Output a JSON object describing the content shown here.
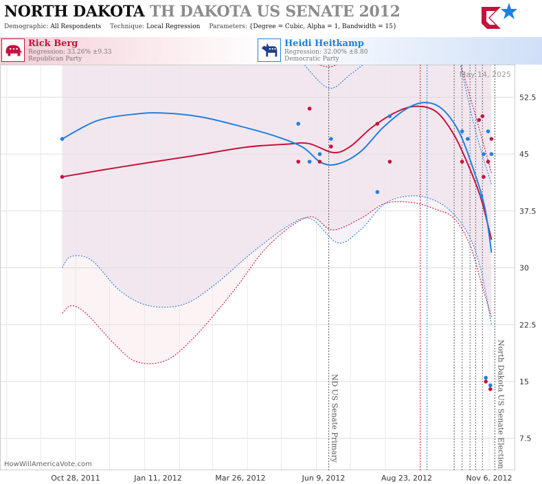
{
  "header": {
    "state": "NORTH DAKOTA",
    "race": "TH DAKOTA US SENATE 2012",
    "params": [
      {
        "key": "Demographic:",
        "value": "All Respondents"
      },
      {
        "key": "Technique:",
        "value": "Local Regression"
      },
      {
        "key": "Parameters:",
        "value": "{Degree = Cubic, Alpha = 1, Bandwidth = 15}"
      }
    ]
  },
  "candidates": [
    {
      "name": "Rick Berg",
      "regression": "Regression: 33.26% ±9.33",
      "party": "Republican Party",
      "color": "#c8103c",
      "icon": "elephant-icon"
    },
    {
      "name": "Heidi Heitkamp",
      "regression": "Regression: 32.00% ±8.80",
      "party": "Democratic Party",
      "color": "#1f7fe0",
      "icon": "donkey-icon"
    }
  ],
  "chart_data": {
    "type": "scatter",
    "date_stamp": "May 14, 2025",
    "source": "HowWillAmericaVote.com",
    "x_ticks": [
      "Oct 28, 2011",
      "Jan 11, 2012",
      "Mar 26, 2012",
      "Jun 9, 2012",
      "Aug 23, 2012",
      "Nov 6, 2012"
    ],
    "y_ticks": [
      7.5,
      15,
      22.5,
      30,
      37.5,
      45,
      52.5
    ],
    "xlim": [
      "2011-08-26",
      "2012-11-24"
    ],
    "ylim": [
      3.3,
      56.8
    ],
    "events": [
      {
        "label": "ND US Senate Primary",
        "date": "2012-06-12"
      },
      {
        "label": "North Dakota US Senate Election",
        "date": "2012-11-06"
      }
    ],
    "marker_lines": [
      {
        "date": "2012-09-01",
        "color": "#c8103c"
      },
      {
        "date": "2012-09-07",
        "color": "#1f7fe0"
      },
      {
        "date": "2012-10-01",
        "color": "#666666"
      },
      {
        "date": "2012-10-08",
        "color": "#666666"
      },
      {
        "date": "2012-10-15",
        "color": "#666666"
      },
      {
        "date": "2012-10-20",
        "color": "#666666"
      },
      {
        "date": "2012-10-26",
        "color": "#666666"
      }
    ],
    "series": [
      {
        "name": "Rick Berg",
        "color": "#c8103c",
        "points": [
          {
            "x": "2011-10-20",
            "y": 42
          },
          {
            "x": "2012-05-16",
            "y": 44
          },
          {
            "x": "2012-05-26",
            "y": 51
          },
          {
            "x": "2012-06-04",
            "y": 44
          },
          {
            "x": "2012-06-14",
            "y": 46
          },
          {
            "x": "2012-07-25",
            "y": 49
          },
          {
            "x": "2012-08-05",
            "y": 44
          },
          {
            "x": "2012-10-08",
            "y": 44
          },
          {
            "x": "2012-10-23",
            "y": 49.5
          },
          {
            "x": "2012-10-26",
            "y": 50
          },
          {
            "x": "2012-10-27",
            "y": 42
          },
          {
            "x": "2012-10-31",
            "y": 44
          },
          {
            "x": "2012-11-03",
            "y": 47
          },
          {
            "x": "2012-10-29",
            "y": 15
          },
          {
            "x": "2012-11-02",
            "y": 14
          }
        ],
        "trend": [
          {
            "x": "2011-10-20",
            "y": 42
          },
          {
            "x": "2011-12-15",
            "y": 43.4
          },
          {
            "x": "2012-02-10",
            "y": 44.7
          },
          {
            "x": "2012-03-30",
            "y": 45.9
          },
          {
            "x": "2012-05-05",
            "y": 46.3
          },
          {
            "x": "2012-05-25",
            "y": 46.4
          },
          {
            "x": "2012-06-16",
            "y": 45.2
          },
          {
            "x": "2012-07-01",
            "y": 46
          },
          {
            "x": "2012-07-20",
            "y": 48.5
          },
          {
            "x": "2012-08-10",
            "y": 50.5
          },
          {
            "x": "2012-08-28",
            "y": 51.3
          },
          {
            "x": "2012-09-15",
            "y": 50.6
          },
          {
            "x": "2012-10-01",
            "y": 47.5
          },
          {
            "x": "2012-10-15",
            "y": 43
          },
          {
            "x": "2012-10-25",
            "y": 39
          },
          {
            "x": "2012-11-03",
            "y": 33.7
          }
        ],
        "band_upper": [
          {
            "x": "2012-05-20",
            "y": 61
          },
          {
            "x": "2012-06-12",
            "y": 56.5
          },
          {
            "x": "2012-07-01",
            "y": 58.5
          },
          {
            "x": "2012-07-20",
            "y": 61
          }
        ],
        "band_lower": [
          {
            "x": "2011-10-20",
            "y": 24
          },
          {
            "x": "2011-10-28",
            "y": 25
          },
          {
            "x": "2011-11-10",
            "y": 24
          },
          {
            "x": "2011-12-05",
            "y": 20
          },
          {
            "x": "2011-12-25",
            "y": 17.6
          },
          {
            "x": "2012-01-20",
            "y": 17.8
          },
          {
            "x": "2012-02-15",
            "y": 21
          },
          {
            "x": "2012-03-20",
            "y": 27
          },
          {
            "x": "2012-04-20",
            "y": 33
          },
          {
            "x": "2012-05-25",
            "y": 36.7
          },
          {
            "x": "2012-06-15",
            "y": 35
          },
          {
            "x": "2012-07-10",
            "y": 36.5
          },
          {
            "x": "2012-08-01",
            "y": 38.5
          },
          {
            "x": "2012-08-25",
            "y": 38.6
          },
          {
            "x": "2012-09-15",
            "y": 37.7
          },
          {
            "x": "2012-10-01",
            "y": 36.5
          },
          {
            "x": "2012-10-15",
            "y": 33
          },
          {
            "x": "2012-10-25",
            "y": 28
          },
          {
            "x": "2012-11-03",
            "y": 23.5
          }
        ],
        "band_right_upper": [
          {
            "x": "2012-10-05",
            "y": 60
          },
          {
            "x": "2012-10-20",
            "y": 50
          },
          {
            "x": "2012-11-03",
            "y": 42.5
          }
        ]
      },
      {
        "name": "Heidi Heitkamp",
        "color": "#1f7fe0",
        "points": [
          {
            "x": "2011-10-20",
            "y": 47
          },
          {
            "x": "2012-05-16",
            "y": 49
          },
          {
            "x": "2012-05-26",
            "y": 44
          },
          {
            "x": "2012-06-04",
            "y": 45
          },
          {
            "x": "2012-06-14",
            "y": 47
          },
          {
            "x": "2012-07-25",
            "y": 40
          },
          {
            "x": "2012-08-05",
            "y": 50
          },
          {
            "x": "2012-10-08",
            "y": 48
          },
          {
            "x": "2012-10-13",
            "y": 47
          },
          {
            "x": "2012-10-25",
            "y": 39.5
          },
          {
            "x": "2012-10-27",
            "y": 45
          },
          {
            "x": "2012-10-31",
            "y": 48
          },
          {
            "x": "2012-11-03",
            "y": 45
          },
          {
            "x": "2012-10-29",
            "y": 15.5
          },
          {
            "x": "2012-11-02",
            "y": 14.5
          }
        ],
        "trend": [
          {
            "x": "2011-10-20",
            "y": 47
          },
          {
            "x": "2011-11-20",
            "y": 49.4
          },
          {
            "x": "2011-12-25",
            "y": 50.3
          },
          {
            "x": "2012-01-20",
            "y": 50.4
          },
          {
            "x": "2012-02-20",
            "y": 49.9
          },
          {
            "x": "2012-03-25",
            "y": 48.7
          },
          {
            "x": "2012-04-25",
            "y": 47.4
          },
          {
            "x": "2012-05-20",
            "y": 45.9
          },
          {
            "x": "2012-06-05",
            "y": 43.9
          },
          {
            "x": "2012-06-20",
            "y": 43.7
          },
          {
            "x": "2012-07-10",
            "y": 45.3
          },
          {
            "x": "2012-07-30",
            "y": 48.5
          },
          {
            "x": "2012-08-20",
            "y": 51
          },
          {
            "x": "2012-09-05",
            "y": 51.8
          },
          {
            "x": "2012-09-20",
            "y": 51
          },
          {
            "x": "2012-10-05",
            "y": 48
          },
          {
            "x": "2012-10-18",
            "y": 43
          },
          {
            "x": "2012-10-28",
            "y": 38
          },
          {
            "x": "2012-11-03",
            "y": 32
          }
        ],
        "band_upper": [
          {
            "x": "2012-05-20",
            "y": 57
          },
          {
            "x": "2012-06-12",
            "y": 53.7
          },
          {
            "x": "2012-07-01",
            "y": 55.5
          },
          {
            "x": "2012-07-20",
            "y": 59
          }
        ],
        "band_lower": [
          {
            "x": "2011-10-20",
            "y": 30
          },
          {
            "x": "2011-10-28",
            "y": 31.5
          },
          {
            "x": "2011-11-15",
            "y": 31
          },
          {
            "x": "2011-12-10",
            "y": 27
          },
          {
            "x": "2012-01-05",
            "y": 25
          },
          {
            "x": "2012-02-05",
            "y": 25.2
          },
          {
            "x": "2012-03-05",
            "y": 28
          },
          {
            "x": "2012-04-05",
            "y": 32
          },
          {
            "x": "2012-05-10",
            "y": 35.8
          },
          {
            "x": "2012-05-28",
            "y": 36.4
          },
          {
            "x": "2012-06-20",
            "y": 33.3
          },
          {
            "x": "2012-07-10",
            "y": 35
          },
          {
            "x": "2012-08-01",
            "y": 38.5
          },
          {
            "x": "2012-08-25",
            "y": 39.5
          },
          {
            "x": "2012-09-15",
            "y": 38.8
          },
          {
            "x": "2012-10-01",
            "y": 37
          },
          {
            "x": "2012-10-15",
            "y": 34
          },
          {
            "x": "2012-10-25",
            "y": 29.5
          },
          {
            "x": "2012-11-03",
            "y": 22.5
          }
        ],
        "band_right_upper": [
          {
            "x": "2012-10-05",
            "y": 58
          },
          {
            "x": "2012-10-20",
            "y": 48
          },
          {
            "x": "2012-11-03",
            "y": 41
          }
        ]
      }
    ]
  }
}
